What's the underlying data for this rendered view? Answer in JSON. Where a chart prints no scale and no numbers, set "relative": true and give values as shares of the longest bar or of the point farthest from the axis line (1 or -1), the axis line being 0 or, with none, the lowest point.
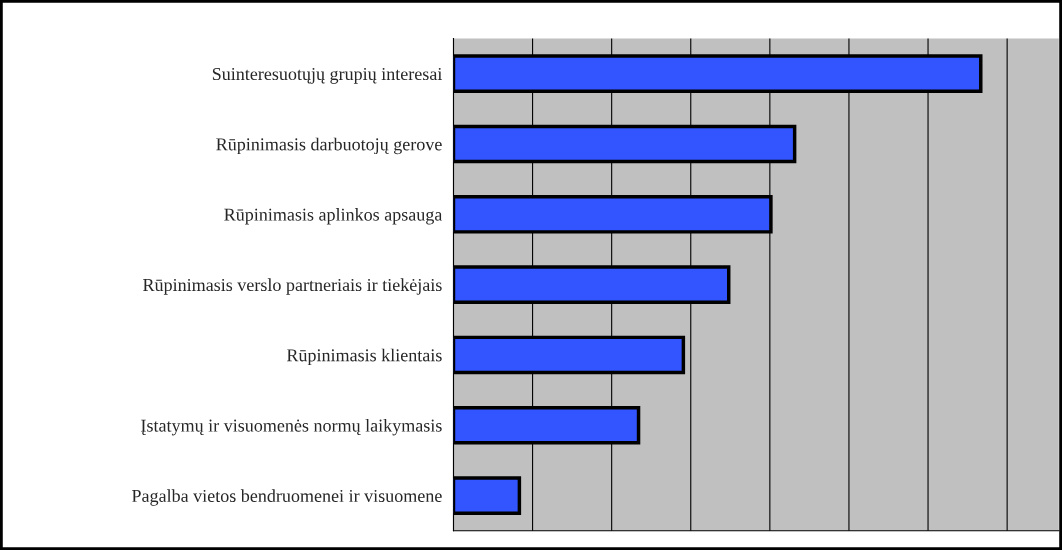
{
  "chart_data": {
    "type": "bar",
    "orientation": "horizontal",
    "relative": true,
    "grid": "x",
    "color": "#3355ff",
    "categories": [
      "Suinteresuotųjų grupių interesai",
      "Rūpinimasis darbuotojų gerove",
      "Rūpinimasis aplinkos apsauga",
      "Rūpinimasis verslo partneriais ir tiekėjais",
      "Rūpinimasis klientais",
      "Įstatymų ir visuomenės normų laikymasis",
      "Pagalba vietos bendruomenei ir visuomene"
    ],
    "values": [
      1,
      0.647,
      0.602,
      0.522,
      0.436,
      0.351,
      0.125
    ]
  }
}
